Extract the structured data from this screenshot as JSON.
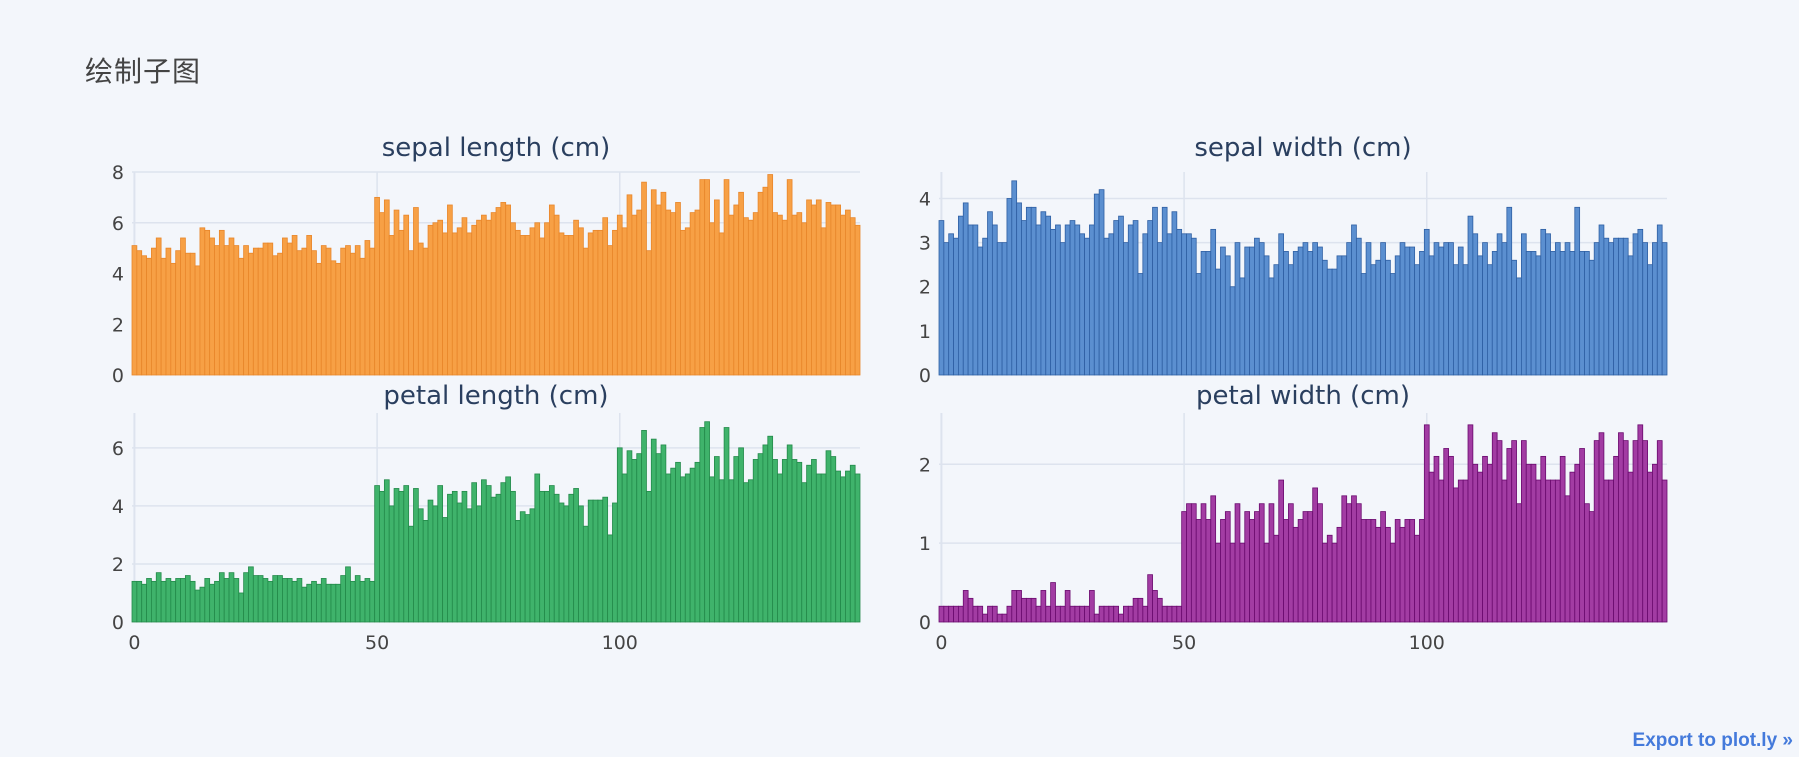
{
  "page": {
    "title": "绘制子图",
    "export_label": "Export to plot.ly »"
  },
  "chart_data": [
    {
      "type": "bar",
      "title": "sepal length (cm)",
      "color": "#f7a045",
      "border": "#e8862a",
      "ylim": [
        0,
        8
      ],
      "yticks": [
        0,
        2,
        4,
        6,
        8
      ],
      "xlim": [
        -0.5,
        149.5
      ],
      "xticks": [
        0,
        50,
        100
      ],
      "show_xtick_labels": false,
      "values": [
        5.1,
        4.9,
        4.7,
        4.6,
        5.0,
        5.4,
        4.6,
        5.0,
        4.4,
        4.9,
        5.4,
        4.8,
        4.8,
        4.3,
        5.8,
        5.7,
        5.4,
        5.1,
        5.7,
        5.1,
        5.4,
        5.1,
        4.6,
        5.1,
        4.8,
        5.0,
        5.0,
        5.2,
        5.2,
        4.7,
        4.8,
        5.4,
        5.2,
        5.5,
        4.9,
        5.0,
        5.5,
        4.9,
        4.4,
        5.1,
        5.0,
        4.5,
        4.4,
        5.0,
        5.1,
        4.8,
        5.1,
        4.6,
        5.3,
        5.0,
        7.0,
        6.4,
        6.9,
        5.5,
        6.5,
        5.7,
        6.3,
        4.9,
        6.6,
        5.2,
        5.0,
        5.9,
        6.0,
        6.1,
        5.6,
        6.7,
        5.6,
        5.8,
        6.2,
        5.6,
        5.9,
        6.1,
        6.3,
        6.1,
        6.4,
        6.6,
        6.8,
        6.7,
        6.0,
        5.7,
        5.5,
        5.5,
        5.8,
        6.0,
        5.4,
        6.0,
        6.7,
        6.3,
        5.6,
        5.5,
        5.5,
        6.1,
        5.8,
        5.0,
        5.6,
        5.7,
        5.7,
        6.2,
        5.1,
        5.7,
        6.3,
        5.8,
        7.1,
        6.3,
        6.5,
        7.6,
        4.9,
        7.3,
        6.7,
        7.2,
        6.5,
        6.4,
        6.8,
        5.7,
        5.8,
        6.4,
        6.5,
        7.7,
        7.7,
        6.0,
        6.9,
        5.6,
        7.7,
        6.3,
        6.7,
        7.2,
        6.2,
        6.1,
        6.4,
        7.2,
        7.4,
        7.9,
        6.4,
        6.3,
        6.1,
        7.7,
        6.3,
        6.4,
        6.0,
        6.9,
        6.7,
        6.9,
        5.8,
        6.8,
        6.7,
        6.7,
        6.3,
        6.5,
        6.2,
        5.9
      ]
    },
    {
      "type": "bar",
      "title": "sepal width (cm)",
      "color": "#5b8fd0",
      "border": "#2e5fa3",
      "ylim": [
        0,
        4.6
      ],
      "yticks": [
        0,
        1,
        2,
        3,
        4
      ],
      "xlim": [
        -0.5,
        149.5
      ],
      "xticks": [
        0,
        50,
        100
      ],
      "show_xtick_labels": false,
      "values": [
        3.5,
        3.0,
        3.2,
        3.1,
        3.6,
        3.9,
        3.4,
        3.4,
        2.9,
        3.1,
        3.7,
        3.4,
        3.0,
        3.0,
        4.0,
        4.4,
        3.9,
        3.5,
        3.8,
        3.8,
        3.4,
        3.7,
        3.6,
        3.3,
        3.4,
        3.0,
        3.4,
        3.5,
        3.4,
        3.2,
        3.1,
        3.4,
        4.1,
        4.2,
        3.1,
        3.2,
        3.5,
        3.6,
        3.0,
        3.4,
        3.5,
        2.3,
        3.2,
        3.5,
        3.8,
        3.0,
        3.8,
        3.2,
        3.7,
        3.3,
        3.2,
        3.2,
        3.1,
        2.3,
        2.8,
        2.8,
        3.3,
        2.4,
        2.9,
        2.7,
        2.0,
        3.0,
        2.2,
        2.9,
        2.9,
        3.1,
        3.0,
        2.7,
        2.2,
        2.5,
        3.2,
        2.8,
        2.5,
        2.8,
        2.9,
        3.0,
        2.8,
        3.0,
        2.9,
        2.6,
        2.4,
        2.4,
        2.7,
        2.7,
        3.0,
        3.4,
        3.1,
        2.3,
        3.0,
        2.5,
        2.6,
        3.0,
        2.6,
        2.3,
        2.7,
        3.0,
        2.9,
        2.9,
        2.5,
        2.8,
        3.3,
        2.7,
        3.0,
        2.9,
        3.0,
        3.0,
        2.5,
        2.9,
        2.5,
        3.6,
        3.2,
        2.7,
        3.0,
        2.5,
        2.8,
        3.2,
        3.0,
        3.8,
        2.6,
        2.2,
        3.2,
        2.8,
        2.8,
        2.7,
        3.3,
        3.2,
        2.8,
        3.0,
        2.8,
        3.0,
        2.8,
        3.8,
        2.8,
        2.8,
        2.6,
        3.0,
        3.4,
        3.1,
        3.0,
        3.1,
        3.1,
        3.1,
        2.7,
        3.2,
        3.3,
        3.0,
        2.5,
        3.0,
        3.4,
        3.0
      ]
    },
    {
      "type": "bar",
      "title": "petal length (cm)",
      "color": "#3fb36b",
      "border": "#238a4a",
      "ylim": [
        0,
        7.2
      ],
      "yticks": [
        0,
        2,
        4,
        6
      ],
      "xlim": [
        -0.5,
        149.5
      ],
      "xticks": [
        0,
        50,
        100
      ],
      "show_xtick_labels": true,
      "values": [
        1.4,
        1.4,
        1.3,
        1.5,
        1.4,
        1.7,
        1.4,
        1.5,
        1.4,
        1.5,
        1.5,
        1.6,
        1.4,
        1.1,
        1.2,
        1.5,
        1.3,
        1.4,
        1.7,
        1.5,
        1.7,
        1.5,
        1.0,
        1.7,
        1.9,
        1.6,
        1.6,
        1.5,
        1.4,
        1.6,
        1.6,
        1.5,
        1.5,
        1.4,
        1.5,
        1.2,
        1.3,
        1.4,
        1.3,
        1.5,
        1.3,
        1.3,
        1.3,
        1.6,
        1.9,
        1.4,
        1.6,
        1.4,
        1.5,
        1.4,
        4.7,
        4.5,
        4.9,
        4.0,
        4.6,
        4.5,
        4.7,
        3.3,
        4.6,
        3.9,
        3.5,
        4.2,
        4.0,
        4.7,
        3.6,
        4.4,
        4.5,
        4.1,
        4.5,
        3.9,
        4.8,
        4.0,
        4.9,
        4.7,
        4.3,
        4.4,
        4.8,
        5.0,
        4.5,
        3.5,
        3.8,
        3.7,
        3.9,
        5.1,
        4.5,
        4.5,
        4.7,
        4.4,
        4.1,
        4.0,
        4.4,
        4.6,
        4.0,
        3.3,
        4.2,
        4.2,
        4.2,
        4.3,
        3.0,
        4.1,
        6.0,
        5.1,
        5.9,
        5.6,
        5.8,
        6.6,
        4.5,
        6.3,
        5.8,
        6.1,
        5.1,
        5.3,
        5.5,
        5.0,
        5.1,
        5.3,
        5.5,
        6.7,
        6.9,
        5.0,
        5.7,
        4.9,
        6.7,
        4.9,
        5.7,
        6.0,
        4.8,
        4.9,
        5.6,
        5.8,
        6.1,
        6.4,
        5.6,
        5.1,
        5.6,
        6.1,
        5.6,
        5.5,
        4.8,
        5.4,
        5.6,
        5.1,
        5.1,
        5.9,
        5.7,
        5.2,
        5.0,
        5.2,
        5.4,
        5.1
      ]
    },
    {
      "type": "bar",
      "title": "petal width (cm)",
      "color": "#a23ca3",
      "border": "#6a0a6e",
      "ylim": [
        0,
        2.65
      ],
      "yticks": [
        0,
        1,
        2
      ],
      "xlim": [
        -0.5,
        149.5
      ],
      "xticks": [
        0,
        50,
        100
      ],
      "show_xtick_labels": true,
      "values": [
        0.2,
        0.2,
        0.2,
        0.2,
        0.2,
        0.4,
        0.3,
        0.2,
        0.2,
        0.1,
        0.2,
        0.2,
        0.1,
        0.1,
        0.2,
        0.4,
        0.4,
        0.3,
        0.3,
        0.3,
        0.2,
        0.4,
        0.2,
        0.5,
        0.2,
        0.2,
        0.4,
        0.2,
        0.2,
        0.2,
        0.2,
        0.4,
        0.1,
        0.2,
        0.2,
        0.2,
        0.2,
        0.1,
        0.2,
        0.2,
        0.3,
        0.3,
        0.2,
        0.6,
        0.4,
        0.3,
        0.2,
        0.2,
        0.2,
        0.2,
        1.4,
        1.5,
        1.5,
        1.3,
        1.5,
        1.3,
        1.6,
        1.0,
        1.3,
        1.4,
        1.0,
        1.5,
        1.0,
        1.4,
        1.3,
        1.4,
        1.5,
        1.0,
        1.5,
        1.1,
        1.8,
        1.3,
        1.5,
        1.2,
        1.3,
        1.4,
        1.4,
        1.7,
        1.5,
        1.0,
        1.1,
        1.0,
        1.2,
        1.6,
        1.5,
        1.6,
        1.5,
        1.3,
        1.3,
        1.3,
        1.2,
        1.4,
        1.2,
        1.0,
        1.3,
        1.2,
        1.3,
        1.3,
        1.1,
        1.3,
        2.5,
        1.9,
        2.1,
        1.8,
        2.2,
        2.1,
        1.7,
        1.8,
        1.8,
        2.5,
        2.0,
        1.9,
        2.1,
        2.0,
        2.4,
        2.3,
        1.8,
        2.2,
        2.3,
        1.5,
        2.3,
        2.0,
        2.0,
        1.8,
        2.1,
        1.8,
        1.8,
        1.8,
        2.1,
        1.6,
        1.9,
        2.0,
        2.2,
        1.5,
        1.4,
        2.3,
        2.4,
        1.8,
        1.8,
        2.1,
        2.4,
        2.3,
        1.9,
        2.3,
        2.5,
        2.3,
        1.9,
        2.0,
        2.3,
        1.8
      ]
    }
  ]
}
